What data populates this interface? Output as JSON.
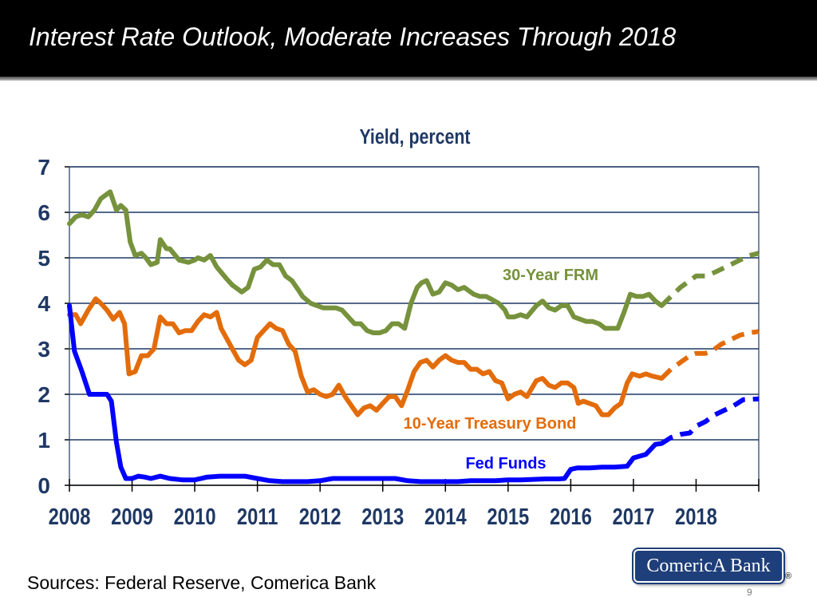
{
  "slide": {
    "title": "Interest Rate Outlook, Moderate Increases Through 2018",
    "sources": "Sources: Federal Reserve, Comerica Bank",
    "logo_text": "ComericA Bank",
    "logo_mark": "®",
    "page_number": "9"
  },
  "chart_data": {
    "type": "line",
    "title": "Yield, percent",
    "xlabel": "",
    "ylabel": "",
    "xlim": [
      2008,
      2019
    ],
    "ylim": [
      0,
      7
    ],
    "y_ticks": [
      0,
      1,
      2,
      3,
      4,
      5,
      6,
      7
    ],
    "x_ticks": [
      2008,
      2009,
      2010,
      2011,
      2012,
      2013,
      2014,
      2015,
      2016,
      2017,
      2018
    ],
    "grid": "horizontal",
    "colors": {
      "frm": "#76923c",
      "treasury": "#e36c0a",
      "fedfunds": "#0000ff",
      "title": "#1f3864",
      "grid": "#1f3864"
    },
    "series": [
      {
        "name": "30-Year FRM",
        "label": "30-Year FRM",
        "actual": [
          [
            2008,
            5.75
          ],
          [
            2008.1,
            5.9
          ],
          [
            2008.2,
            5.95
          ],
          [
            2008.3,
            5.9
          ],
          [
            2008.4,
            6.05
          ],
          [
            2008.5,
            6.3
          ],
          [
            2008.6,
            6.4
          ],
          [
            2008.65,
            6.45
          ],
          [
            2008.75,
            6.05
          ],
          [
            2008.82,
            6.15
          ],
          [
            2008.9,
            6.05
          ],
          [
            2008.97,
            5.35
          ],
          [
            2009.05,
            5.05
          ],
          [
            2009.15,
            5.1
          ],
          [
            2009.22,
            5.0
          ],
          [
            2009.3,
            4.85
          ],
          [
            2009.4,
            4.9
          ],
          [
            2009.45,
            5.4
          ],
          [
            2009.55,
            5.2
          ],
          [
            2009.6,
            5.2
          ],
          [
            2009.75,
            4.95
          ],
          [
            2009.9,
            4.9
          ],
          [
            2010.0,
            4.95
          ],
          [
            2010.05,
            5.0
          ],
          [
            2010.15,
            4.95
          ],
          [
            2010.25,
            5.05
          ],
          [
            2010.35,
            4.8
          ],
          [
            2010.5,
            4.55
          ],
          [
            2010.6,
            4.4
          ],
          [
            2010.7,
            4.3
          ],
          [
            2010.75,
            4.25
          ],
          [
            2010.85,
            4.35
          ],
          [
            2010.95,
            4.75
          ],
          [
            2011.05,
            4.8
          ],
          [
            2011.15,
            4.95
          ],
          [
            2011.25,
            4.85
          ],
          [
            2011.35,
            4.85
          ],
          [
            2011.45,
            4.6
          ],
          [
            2011.55,
            4.5
          ],
          [
            2011.65,
            4.3
          ],
          [
            2011.72,
            4.15
          ],
          [
            2011.85,
            4.0
          ],
          [
            2011.95,
            3.95
          ],
          [
            2012.05,
            3.9
          ],
          [
            2012.15,
            3.9
          ],
          [
            2012.25,
            3.9
          ],
          [
            2012.35,
            3.85
          ],
          [
            2012.45,
            3.7
          ],
          [
            2012.55,
            3.55
          ],
          [
            2012.65,
            3.55
          ],
          [
            2012.75,
            3.4
          ],
          [
            2012.85,
            3.35
          ],
          [
            2012.95,
            3.35
          ],
          [
            2013.05,
            3.4
          ],
          [
            2013.15,
            3.55
          ],
          [
            2013.25,
            3.55
          ],
          [
            2013.35,
            3.45
          ],
          [
            2013.45,
            4.0
          ],
          [
            2013.55,
            4.35
          ],
          [
            2013.62,
            4.45
          ],
          [
            2013.7,
            4.5
          ],
          [
            2013.8,
            4.2
          ],
          [
            2013.9,
            4.25
          ],
          [
            2014.0,
            4.45
          ],
          [
            2014.1,
            4.4
          ],
          [
            2014.2,
            4.3
          ],
          [
            2014.3,
            4.35
          ],
          [
            2014.45,
            4.2
          ],
          [
            2014.55,
            4.15
          ],
          [
            2014.65,
            4.15
          ],
          [
            2014.72,
            4.1
          ],
          [
            2014.85,
            4.0
          ],
          [
            2014.95,
            3.85
          ],
          [
            2015.0,
            3.7
          ],
          [
            2015.1,
            3.7
          ],
          [
            2015.2,
            3.75
          ],
          [
            2015.3,
            3.7
          ],
          [
            2015.45,
            3.95
          ],
          [
            2015.55,
            4.05
          ],
          [
            2015.65,
            3.9
          ],
          [
            2015.75,
            3.85
          ],
          [
            2015.85,
            3.95
          ],
          [
            2015.95,
            3.95
          ],
          [
            2016.05,
            3.7
          ],
          [
            2016.15,
            3.65
          ],
          [
            2016.25,
            3.6
          ],
          [
            2016.35,
            3.6
          ],
          [
            2016.45,
            3.55
          ],
          [
            2016.55,
            3.45
          ],
          [
            2016.65,
            3.45
          ],
          [
            2016.75,
            3.45
          ],
          [
            2016.85,
            3.8
          ],
          [
            2016.95,
            4.2
          ],
          [
            2017.05,
            4.15
          ],
          [
            2017.15,
            4.15
          ],
          [
            2017.25,
            4.2
          ],
          [
            2017.35,
            4.05
          ],
          [
            2017.45,
            3.95
          ]
        ],
        "forecast": [
          [
            2017.45,
            3.95
          ],
          [
            2017.6,
            4.15
          ],
          [
            2017.75,
            4.35
          ],
          [
            2017.9,
            4.5
          ],
          [
            2018.0,
            4.6
          ],
          [
            2018.15,
            4.6
          ],
          [
            2018.25,
            4.65
          ],
          [
            2018.4,
            4.75
          ],
          [
            2018.55,
            4.85
          ],
          [
            2018.7,
            4.95
          ],
          [
            2018.85,
            5.05
          ],
          [
            2019.0,
            5.1
          ]
        ]
      },
      {
        "name": "10-Year Treasury Bond",
        "label": "10-Year Treasury Bond",
        "actual": [
          [
            2008,
            3.75
          ],
          [
            2008.1,
            3.75
          ],
          [
            2008.18,
            3.55
          ],
          [
            2008.3,
            3.85
          ],
          [
            2008.42,
            4.1
          ],
          [
            2008.5,
            4.0
          ],
          [
            2008.6,
            3.85
          ],
          [
            2008.7,
            3.65
          ],
          [
            2008.8,
            3.8
          ],
          [
            2008.88,
            3.55
          ],
          [
            2008.95,
            2.45
          ],
          [
            2009.05,
            2.5
          ],
          [
            2009.15,
            2.85
          ],
          [
            2009.25,
            2.85
          ],
          [
            2009.35,
            3.0
          ],
          [
            2009.45,
            3.7
          ],
          [
            2009.55,
            3.55
          ],
          [
            2009.65,
            3.55
          ],
          [
            2009.75,
            3.35
          ],
          [
            2009.85,
            3.4
          ],
          [
            2009.95,
            3.4
          ],
          [
            2010.05,
            3.6
          ],
          [
            2010.15,
            3.75
          ],
          [
            2010.25,
            3.7
          ],
          [
            2010.35,
            3.8
          ],
          [
            2010.42,
            3.45
          ],
          [
            2010.5,
            3.25
          ],
          [
            2010.6,
            3.0
          ],
          [
            2010.7,
            2.75
          ],
          [
            2010.8,
            2.65
          ],
          [
            2010.9,
            2.75
          ],
          [
            2011.0,
            3.25
          ],
          [
            2011.1,
            3.4
          ],
          [
            2011.2,
            3.55
          ],
          [
            2011.3,
            3.45
          ],
          [
            2011.4,
            3.4
          ],
          [
            2011.5,
            3.1
          ],
          [
            2011.6,
            2.95
          ],
          [
            2011.7,
            2.4
          ],
          [
            2011.8,
            2.05
          ],
          [
            2011.9,
            2.1
          ],
          [
            2012.0,
            2.0
          ],
          [
            2012.1,
            1.95
          ],
          [
            2012.2,
            2.0
          ],
          [
            2012.3,
            2.2
          ],
          [
            2012.4,
            1.95
          ],
          [
            2012.5,
            1.75
          ],
          [
            2012.6,
            1.55
          ],
          [
            2012.7,
            1.7
          ],
          [
            2012.8,
            1.75
          ],
          [
            2012.9,
            1.65
          ],
          [
            2013.0,
            1.8
          ],
          [
            2013.1,
            1.95
          ],
          [
            2013.2,
            1.95
          ],
          [
            2013.3,
            1.75
          ],
          [
            2013.4,
            2.1
          ],
          [
            2013.5,
            2.5
          ],
          [
            2013.6,
            2.7
          ],
          [
            2013.7,
            2.75
          ],
          [
            2013.8,
            2.6
          ],
          [
            2013.9,
            2.75
          ],
          [
            2014.0,
            2.85
          ],
          [
            2014.1,
            2.75
          ],
          [
            2014.2,
            2.7
          ],
          [
            2014.3,
            2.7
          ],
          [
            2014.4,
            2.55
          ],
          [
            2014.5,
            2.55
          ],
          [
            2014.6,
            2.45
          ],
          [
            2014.7,
            2.5
          ],
          [
            2014.8,
            2.3
          ],
          [
            2014.9,
            2.25
          ],
          [
            2015.0,
            1.9
          ],
          [
            2015.1,
            2.0
          ],
          [
            2015.2,
            2.05
          ],
          [
            2015.3,
            1.95
          ],
          [
            2015.45,
            2.3
          ],
          [
            2015.55,
            2.35
          ],
          [
            2015.65,
            2.2
          ],
          [
            2015.75,
            2.15
          ],
          [
            2015.85,
            2.25
          ],
          [
            2015.95,
            2.25
          ],
          [
            2016.05,
            2.15
          ],
          [
            2016.12,
            1.8
          ],
          [
            2016.2,
            1.85
          ],
          [
            2016.3,
            1.8
          ],
          [
            2016.4,
            1.75
          ],
          [
            2016.5,
            1.55
          ],
          [
            2016.6,
            1.55
          ],
          [
            2016.7,
            1.7
          ],
          [
            2016.8,
            1.8
          ],
          [
            2016.9,
            2.25
          ],
          [
            2016.98,
            2.45
          ],
          [
            2017.1,
            2.4
          ],
          [
            2017.2,
            2.45
          ],
          [
            2017.3,
            2.4
          ],
          [
            2017.45,
            2.35
          ]
        ],
        "forecast": [
          [
            2017.45,
            2.35
          ],
          [
            2017.6,
            2.55
          ],
          [
            2017.75,
            2.7
          ],
          [
            2017.9,
            2.85
          ],
          [
            2018.0,
            2.9
          ],
          [
            2018.15,
            2.9
          ],
          [
            2018.25,
            2.95
          ],
          [
            2018.4,
            3.1
          ],
          [
            2018.55,
            3.2
          ],
          [
            2018.7,
            3.3
          ],
          [
            2018.85,
            3.35
          ],
          [
            2019.0,
            3.38
          ]
        ]
      },
      {
        "name": "Fed Funds",
        "label": "Fed Funds",
        "actual": [
          [
            2008,
            3.95
          ],
          [
            2008.08,
            2.95
          ],
          [
            2008.2,
            2.5
          ],
          [
            2008.32,
            2.0
          ],
          [
            2008.42,
            2.0
          ],
          [
            2008.52,
            2.0
          ],
          [
            2008.6,
            2.0
          ],
          [
            2008.67,
            1.85
          ],
          [
            2008.75,
            0.95
          ],
          [
            2008.82,
            0.4
          ],
          [
            2008.9,
            0.15
          ],
          [
            2009.0,
            0.15
          ],
          [
            2009.1,
            0.2
          ],
          [
            2009.2,
            0.18
          ],
          [
            2009.3,
            0.15
          ],
          [
            2009.45,
            0.2
          ],
          [
            2009.6,
            0.15
          ],
          [
            2009.8,
            0.12
          ],
          [
            2010.0,
            0.12
          ],
          [
            2010.2,
            0.18
          ],
          [
            2010.4,
            0.2
          ],
          [
            2010.6,
            0.2
          ],
          [
            2010.8,
            0.2
          ],
          [
            2011.0,
            0.15
          ],
          [
            2011.2,
            0.1
          ],
          [
            2011.4,
            0.08
          ],
          [
            2011.6,
            0.08
          ],
          [
            2011.8,
            0.08
          ],
          [
            2012.0,
            0.1
          ],
          [
            2012.2,
            0.15
          ],
          [
            2012.4,
            0.15
          ],
          [
            2012.6,
            0.15
          ],
          [
            2012.8,
            0.15
          ],
          [
            2013.0,
            0.15
          ],
          [
            2013.2,
            0.15
          ],
          [
            2013.4,
            0.1
          ],
          [
            2013.6,
            0.08
          ],
          [
            2013.8,
            0.08
          ],
          [
            2014.0,
            0.08
          ],
          [
            2014.2,
            0.08
          ],
          [
            2014.4,
            0.1
          ],
          [
            2014.6,
            0.1
          ],
          [
            2014.8,
            0.1
          ],
          [
            2015.0,
            0.12
          ],
          [
            2015.2,
            0.12
          ],
          [
            2015.4,
            0.13
          ],
          [
            2015.6,
            0.14
          ],
          [
            2015.8,
            0.14
          ],
          [
            2015.9,
            0.15
          ],
          [
            2016.0,
            0.35
          ],
          [
            2016.1,
            0.38
          ],
          [
            2016.3,
            0.38
          ],
          [
            2016.5,
            0.4
          ],
          [
            2016.7,
            0.4
          ],
          [
            2016.9,
            0.42
          ],
          [
            2017.0,
            0.6
          ],
          [
            2017.2,
            0.68
          ],
          [
            2017.35,
            0.9
          ],
          [
            2017.45,
            0.92
          ]
        ],
        "forecast": [
          [
            2017.45,
            0.92
          ],
          [
            2017.6,
            1.05
          ],
          [
            2017.75,
            1.12
          ],
          [
            2017.9,
            1.15
          ],
          [
            2018.0,
            1.3
          ],
          [
            2018.15,
            1.4
          ],
          [
            2018.3,
            1.55
          ],
          [
            2018.45,
            1.65
          ],
          [
            2018.6,
            1.75
          ],
          [
            2018.75,
            1.88
          ],
          [
            2019.0,
            1.9
          ]
        ]
      }
    ]
  }
}
